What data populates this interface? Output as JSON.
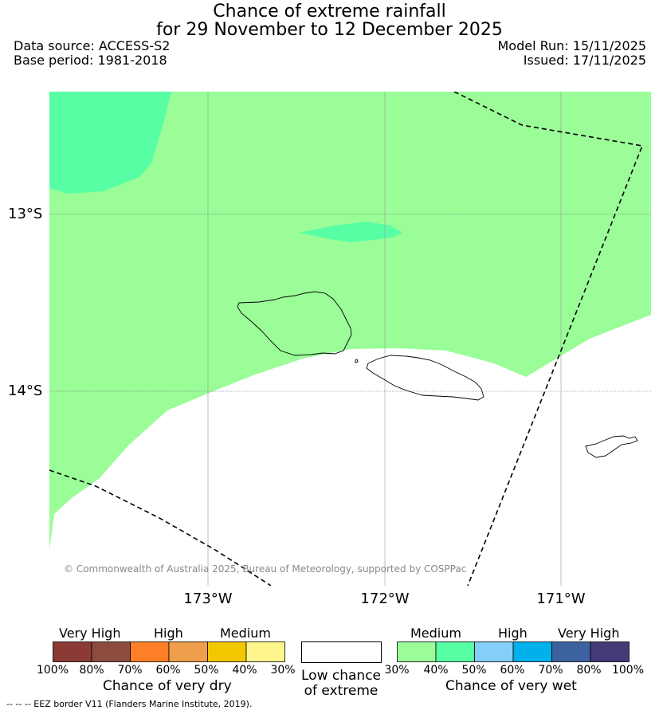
{
  "title": {
    "line1": "Chance of extreme rainfall",
    "line2": "for 29 November to 12 December 2025"
  },
  "meta": {
    "data_source": "Data source: ACCESS-S2",
    "base_period": "Base period: 1981-2018",
    "model_run": "Model Run: 15/11/2025",
    "issued": "Issued: 17/11/2025"
  },
  "map": {
    "lat_labels": [
      "13°S",
      "14°S"
    ],
    "lon_labels": [
      "173°W",
      "172°W",
      "171°W"
    ],
    "copyright": "© Commonwealth of Australia 2025, Bureau of Meteorology, supported by COSPPac",
    "colors": {
      "medium_wet": "#9afd98",
      "medium_high_wet": "#57fea4",
      "low": "#ffffff"
    }
  },
  "legend": {
    "dry": {
      "categories": [
        "Very High",
        "High",
        "Medium"
      ],
      "ticks": [
        "100%",
        "80%",
        "70%",
        "60%",
        "50%",
        "40%",
        "30%"
      ],
      "label": "Chance of very dry",
      "colors": [
        "#8b3a35",
        "#8c4b3f",
        "#fe7f27",
        "#ef9e4c",
        "#f3c700",
        "#fef68c"
      ]
    },
    "low": {
      "line1": "Low chance",
      "line2": "of extreme",
      "color": "#ffffff"
    },
    "wet": {
      "categories": [
        "Medium",
        "High",
        "Very High"
      ],
      "ticks": [
        "30%",
        "40%",
        "50%",
        "60%",
        "70%",
        "80%",
        "100%"
      ],
      "label": "Chance of very wet",
      "colors": [
        "#9afd98",
        "#57fea4",
        "#84cefa",
        "#00b1ea",
        "#3c629f",
        "#433a78"
      ]
    }
  },
  "footer": {
    "eez": "--  --  -- EEZ border V11 (Flanders Marine Institute, 2019)."
  }
}
